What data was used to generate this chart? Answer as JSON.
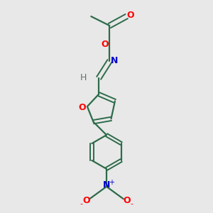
{
  "background_color": "#e8e8e8",
  "bond_color": "#2d6b4a",
  "atom_colors": {
    "O": "#ff0000",
    "N": "#0000cc",
    "H": "#607070",
    "C": "#2d6b4a"
  },
  "figsize": [
    3.0,
    3.0
  ],
  "dpi": 100,
  "lw": 1.6
}
